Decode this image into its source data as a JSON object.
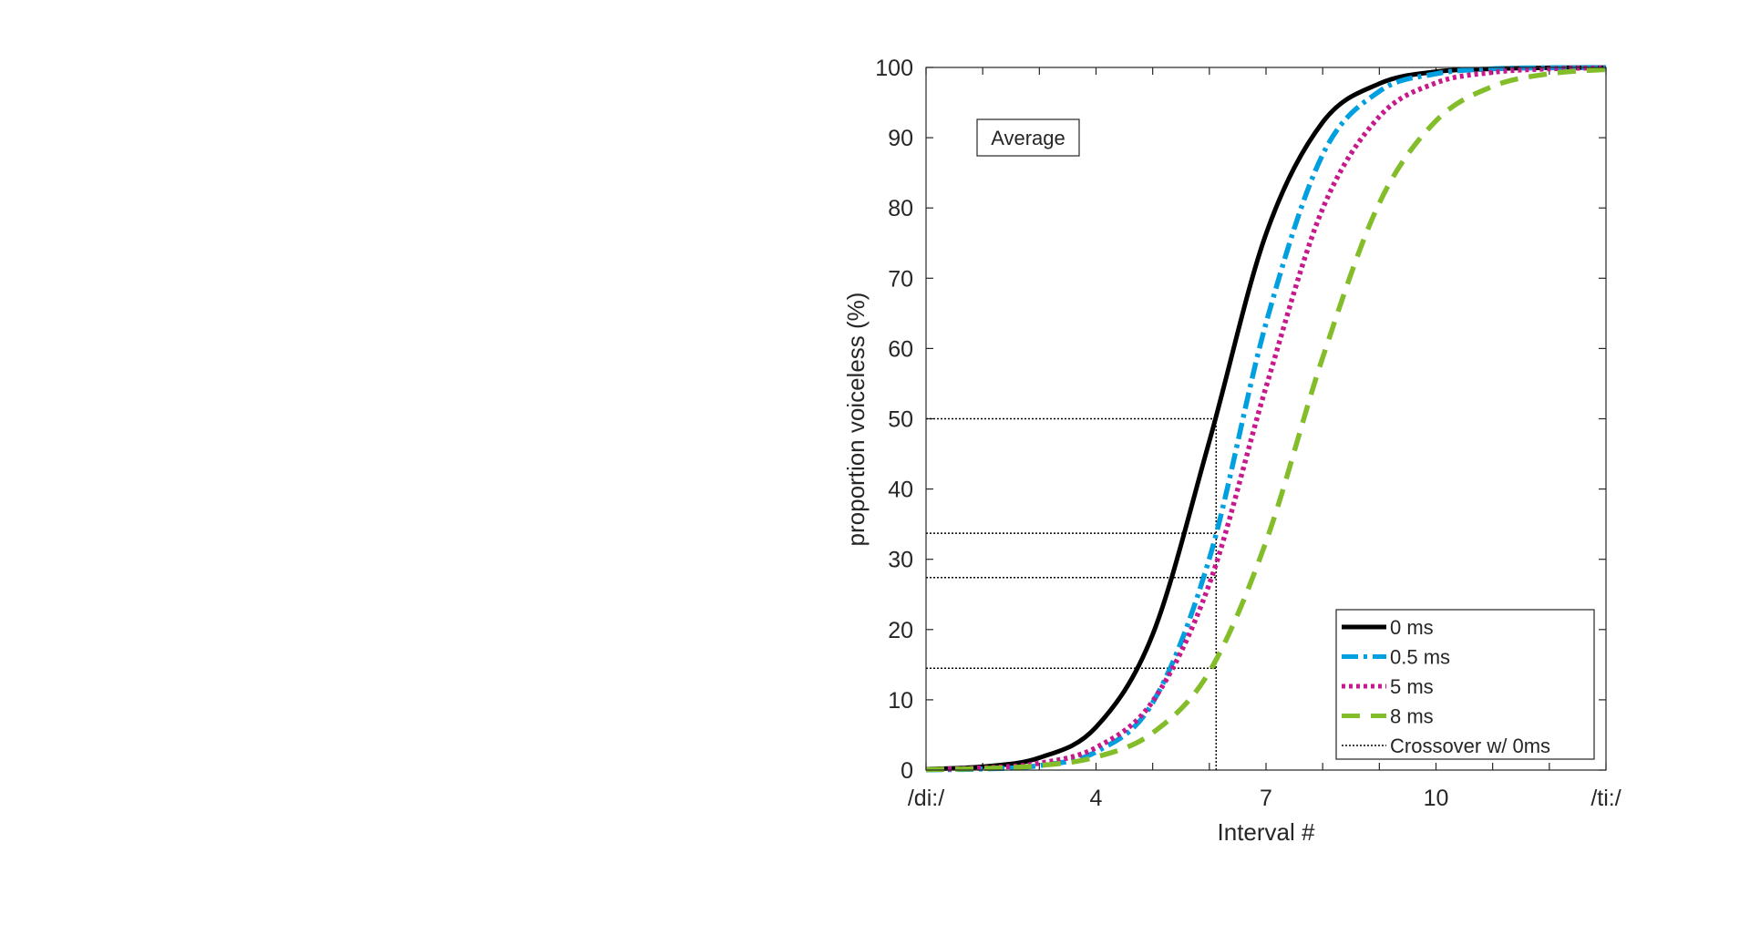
{
  "chart_data": {
    "type": "line",
    "xlabel": "Interval #",
    "ylabel": "proportion voiceless (%)",
    "annotation": "Average",
    "xlim": [
      1,
      13
    ],
    "ylim": [
      0,
      100
    ],
    "grid": false,
    "legend_position": "bottom-right",
    "x_ticks": [
      1,
      2,
      3,
      4,
      5,
      6,
      7,
      8,
      9,
      10,
      11,
      12,
      13
    ],
    "x_tick_labels": [
      {
        "x": 1,
        "label": "/di:/"
      },
      {
        "x": 4,
        "label": "4"
      },
      {
        "x": 7,
        "label": "7"
      },
      {
        "x": 10,
        "label": "10"
      },
      {
        "x": 13,
        "label": "/ti:/"
      }
    ],
    "y_ticks": [
      0,
      10,
      20,
      30,
      40,
      50,
      60,
      70,
      80,
      90,
      100
    ],
    "y_tick_labels": [
      "0",
      "10",
      "20",
      "30",
      "40",
      "50",
      "60",
      "70",
      "80",
      "90",
      "100"
    ],
    "x": [
      1,
      2,
      3,
      4,
      5,
      6,
      7,
      8,
      9,
      10,
      11,
      12,
      13
    ],
    "series": [
      {
        "name": "0 ms",
        "color": "#000000",
        "style": "solid",
        "values": [
          0.13,
          0.48,
          1.75,
          6.1,
          19.3,
          46.8,
          76.3,
          92.2,
          97.7,
          99.4,
          99.8,
          99.95,
          99.99
        ]
      },
      {
        "name": "0.5 ms",
        "color": "#00a0e0",
        "style": "dash-dot",
        "values": [
          0.04,
          0.16,
          0.64,
          2.6,
          9.6,
          30.1,
          63.6,
          87.6,
          96.6,
          99.1,
          99.8,
          99.95,
          99.99
        ]
      },
      {
        "name": "5 ms",
        "color": "#c8198c",
        "style": "dotted",
        "values": [
          0.09,
          0.3,
          0.98,
          3.2,
          9.8,
          26.5,
          54.5,
          79.9,
          93.0,
          97.8,
          99.3,
          99.8,
          99.94
        ]
      },
      {
        "name": "8 ms",
        "color": "#84bd2a",
        "style": "dashed",
        "values": [
          0.07,
          0.22,
          0.64,
          1.85,
          5.3,
          14.0,
          32.5,
          58.7,
          80.7,
          92.4,
          97.3,
          99.1,
          99.7
        ]
      }
    ],
    "crossover": {
      "name": "Crossover w/ 0ms",
      "color": "#000000",
      "style": "dotted",
      "x": 6.12,
      "y_levels": [
        50,
        33.7,
        27.4,
        14.5
      ]
    }
  }
}
